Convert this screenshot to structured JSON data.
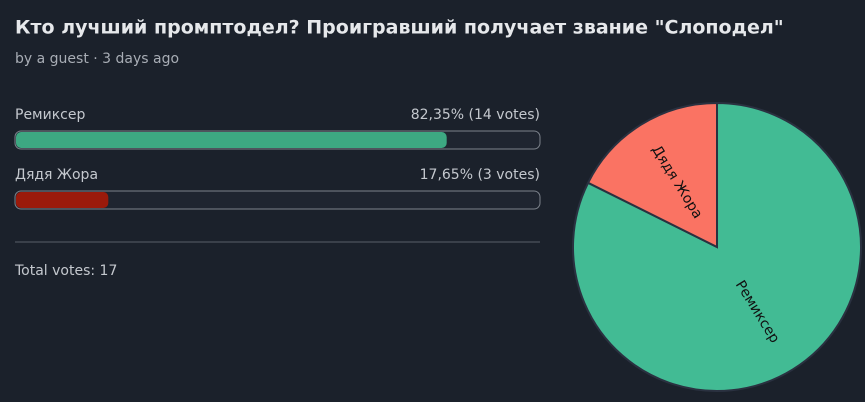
{
  "title": "Кто лучший промптодел? Проигравший получает звание \"Слоподел\"",
  "byline": "by a guest · 3 days ago",
  "poll": {
    "options": [
      {
        "name": "Ремиксер",
        "percent": 82.35,
        "value_label": "82,35% (14 votes)",
        "color": "#3da882"
      },
      {
        "name": "Дядя Жора",
        "percent": 17.65,
        "value_label": "17,65% (3 votes)",
        "color": "#9b1a0b"
      }
    ],
    "total_label": "Total votes: 17"
  },
  "chart_data": {
    "type": "pie",
    "categories": [
      "Ремиксер",
      "Дядя Жора"
    ],
    "values": [
      14,
      3
    ],
    "colors": [
      "#42bb94",
      "#fa7363"
    ]
  }
}
